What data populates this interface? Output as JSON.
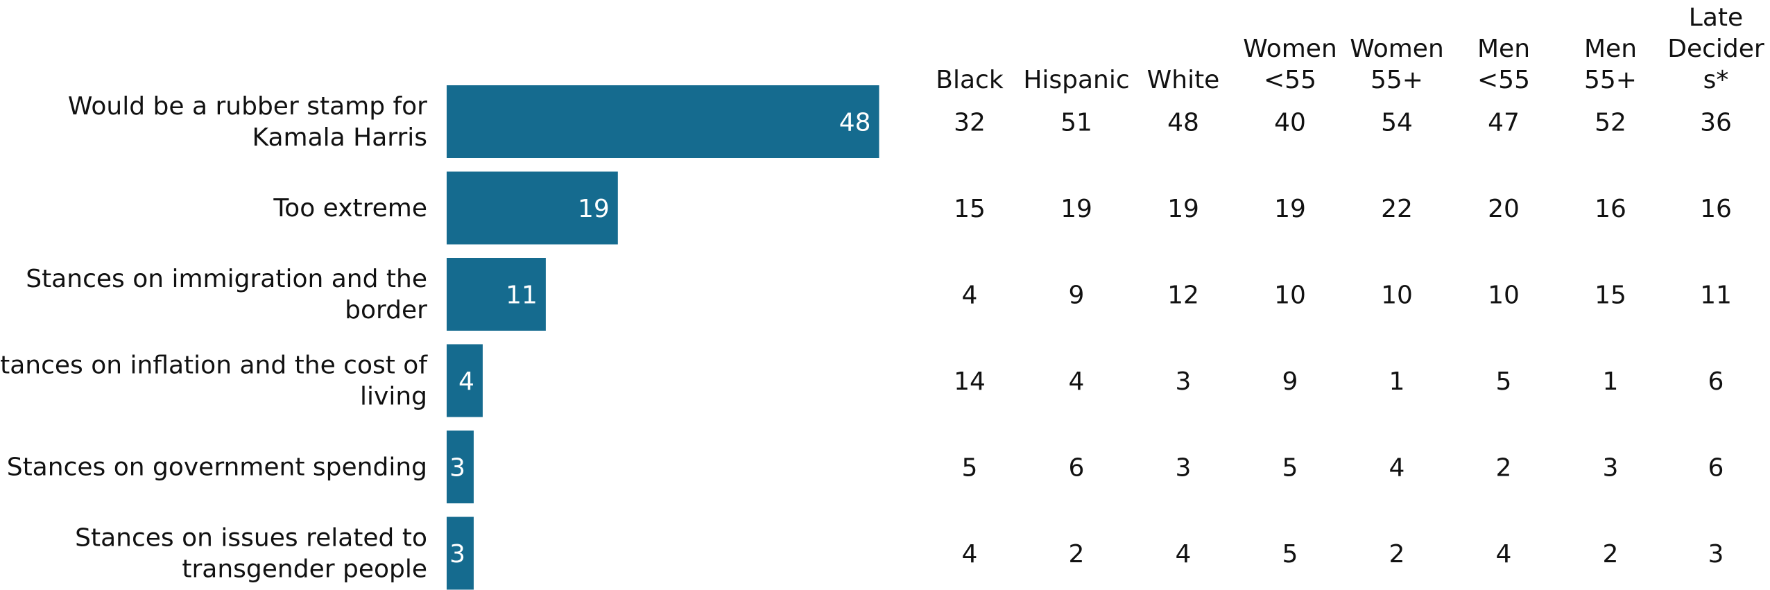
{
  "colors": {
    "bar": "#156b8f",
    "text": "#111111",
    "bar_text": "#ffffff",
    "background": "#ffffff"
  },
  "chart_data": {
    "type": "bar",
    "orientation": "horizontal",
    "categories": [
      [
        "Would be a rubber stamp for",
        "Kamala Harris"
      ],
      [
        "Too extreme"
      ],
      [
        "Stances on immigration and the",
        "border"
      ],
      [
        "Stances on inflation and the cost of",
        "living"
      ],
      [
        "Stances on government spending"
      ],
      [
        "Stances on issues related to",
        "transgender people"
      ]
    ],
    "values": [
      48,
      19,
      11,
      4,
      3,
      3
    ],
    "title": "",
    "xlabel": "",
    "ylabel": "",
    "xlim": [
      0,
      50
    ],
    "grid": false,
    "legend": "none",
    "table": {
      "columns": [
        [
          "Black"
        ],
        [
          "Hispanic"
        ],
        [
          "White"
        ],
        [
          "Women",
          "<55"
        ],
        [
          "Women",
          "55+"
        ],
        [
          "Men",
          "<55"
        ],
        [
          "Men",
          "55+"
        ],
        [
          "Late",
          "Decider",
          "s*"
        ]
      ],
      "rows": [
        [
          32,
          51,
          48,
          40,
          54,
          47,
          52,
          36
        ],
        [
          15,
          19,
          19,
          19,
          22,
          20,
          16,
          16
        ],
        [
          4,
          9,
          12,
          10,
          10,
          10,
          15,
          11
        ],
        [
          14,
          4,
          3,
          9,
          1,
          5,
          1,
          6
        ],
        [
          5,
          6,
          3,
          5,
          4,
          2,
          3,
          6
        ],
        [
          4,
          2,
          4,
          5,
          2,
          4,
          2,
          3
        ]
      ]
    }
  }
}
